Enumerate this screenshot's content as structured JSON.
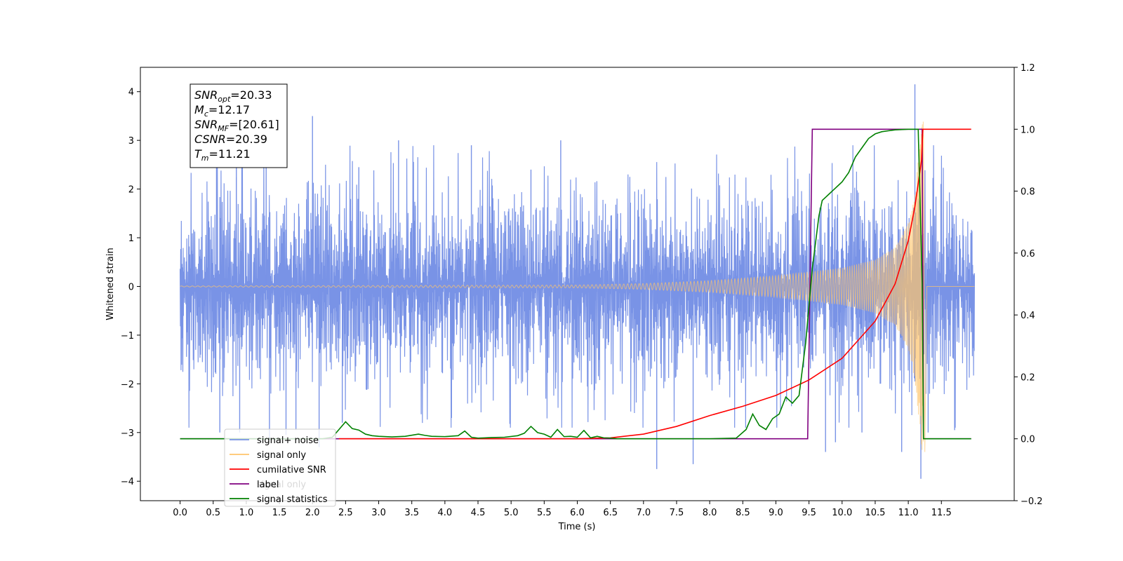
{
  "chart_data": {
    "type": "line",
    "title": "",
    "xlabel": "Time (s)",
    "ylabel_left": "Whitened strain",
    "ylabel_right": "",
    "xlim": [
      -0.6,
      12.6
    ],
    "ylim_left": [
      -4.4,
      4.5
    ],
    "ylim_right": [
      -0.2,
      1.2
    ],
    "x_ticks": [
      "0.0",
      "0.5",
      "1.0",
      "1.5",
      "2.0",
      "2.5",
      "3.0",
      "3.5",
      "4.0",
      "4.5",
      "5.0",
      "5.5",
      "6.0",
      "6.5",
      "7.0",
      "7.5",
      "8.0",
      "8.5",
      "9.0",
      "9.5",
      "10.0",
      "10.5",
      "11.0",
      "11.5"
    ],
    "y_ticks_left": [
      "−4",
      "−3",
      "−2",
      "−1",
      "0",
      "1",
      "2",
      "3",
      "4"
    ],
    "y_ticks_right": [
      "−0.2",
      "0.0",
      "0.2",
      "0.4",
      "0.6",
      "0.8",
      "1.0",
      "1.2"
    ],
    "grid": false,
    "legend_position": "lower-left",
    "legend": [
      {
        "label": "signal+ noise",
        "color": "#7993e6"
      },
      {
        "label": "signal only",
        "color": "#ffc56b"
      },
      {
        "label": "cumilative SNR",
        "color": "#ff0000"
      },
      {
        "label": "label",
        "color": "#800080"
      },
      {
        "label": "signal statistics",
        "color": "#008000"
      }
    ],
    "hidden_legend_label": "signal only",
    "annotation": {
      "lines": [
        {
          "base": "SNR",
          "sub": "opt",
          "value": "=20.33"
        },
        {
          "base": "M",
          "sub": "c",
          "value": "=12.17"
        },
        {
          "base": "SNR",
          "sub": "MF",
          "value": "=[20.61]"
        },
        {
          "base": "CSNR",
          "sub": "",
          "value": "=20.39"
        },
        {
          "base": "T",
          "sub": "m",
          "value": "=11.21"
        }
      ]
    },
    "series": [
      {
        "name": "label",
        "axis": "right",
        "color": "#800080",
        "x": [
          0.0,
          9.48,
          9.55,
          11.21,
          11.23,
          11.95
        ],
        "y": [
          0.0,
          0.0,
          1.0,
          1.0,
          0.0,
          0.0
        ]
      },
      {
        "name": "cumilative SNR",
        "axis": "right",
        "color": "#ff0000",
        "x": [
          2.4,
          6.0,
          6.5,
          7.0,
          7.5,
          8.0,
          8.5,
          9.0,
          9.5,
          10.0,
          10.5,
          10.8,
          11.0,
          11.1,
          11.2,
          11.22,
          11.95
        ],
        "y": [
          0.0,
          0.0,
          0.003,
          0.015,
          0.04,
          0.075,
          0.105,
          0.14,
          0.19,
          0.26,
          0.38,
          0.5,
          0.64,
          0.75,
          0.9,
          1.0,
          1.0
        ]
      },
      {
        "name": "signal statistics",
        "axis": "right",
        "color": "#008000",
        "x": [
          0.0,
          2.15,
          2.3,
          2.4,
          2.5,
          2.6,
          2.7,
          2.8,
          2.9,
          3.0,
          3.2,
          3.4,
          3.6,
          3.7,
          3.8,
          4.0,
          4.2,
          4.3,
          4.4,
          4.5,
          4.6,
          4.7,
          4.9,
          5.1,
          5.2,
          5.3,
          5.4,
          5.5,
          5.6,
          5.7,
          5.8,
          5.9,
          6.0,
          6.1,
          6.2,
          6.3,
          6.4,
          6.5,
          6.6,
          6.8,
          6.9,
          7.0,
          7.2,
          7.5,
          8.0,
          8.4,
          8.55,
          8.65,
          8.75,
          8.85,
          8.95,
          9.05,
          9.15,
          9.25,
          9.35,
          9.45,
          9.55,
          9.65,
          9.7,
          9.75,
          9.8,
          9.85,
          9.9,
          9.95,
          10.0,
          10.1,
          10.2,
          10.3,
          10.4,
          10.5,
          10.6,
          10.7,
          10.8,
          11.0,
          11.15,
          11.21,
          11.23,
          11.95
        ],
        "y": [
          0.0,
          0.0,
          0.005,
          0.03,
          0.055,
          0.033,
          0.028,
          0.015,
          0.01,
          0.008,
          0.006,
          0.008,
          0.015,
          0.011,
          0.008,
          0.007,
          0.01,
          0.025,
          0.005,
          0.002,
          0.003,
          0.004,
          0.005,
          0.01,
          0.018,
          0.04,
          0.02,
          0.015,
          0.005,
          0.03,
          0.007,
          0.008,
          0.005,
          0.027,
          0.003,
          0.008,
          0.003,
          0.002,
          0.0,
          0.0,
          0.0,
          0.0,
          0.0,
          0.0,
          0.0,
          0.002,
          0.03,
          0.08,
          0.043,
          0.03,
          0.065,
          0.08,
          0.135,
          0.115,
          0.14,
          0.31,
          0.55,
          0.72,
          0.77,
          0.78,
          0.79,
          0.8,
          0.81,
          0.82,
          0.83,
          0.86,
          0.91,
          0.94,
          0.97,
          0.985,
          0.992,
          0.995,
          0.998,
          1.0,
          1.0,
          0.5,
          0.0,
          0.0
        ]
      },
      {
        "name": "signal only",
        "axis": "left",
        "color": "#ffc56b",
        "model": "chirp",
        "x_start": 0.0,
        "x_end": 11.23,
        "envelope": [
          {
            "x": 0.0,
            "amp": 0.01
          },
          {
            "x": 6.0,
            "amp": 0.03
          },
          {
            "x": 7.0,
            "amp": 0.06
          },
          {
            "x": 8.0,
            "amp": 0.12
          },
          {
            "x": 9.0,
            "amp": 0.22
          },
          {
            "x": 10.0,
            "amp": 0.38
          },
          {
            "x": 10.5,
            "amp": 0.55
          },
          {
            "x": 10.8,
            "amp": 0.8
          },
          {
            "x": 11.0,
            "amp": 1.3
          },
          {
            "x": 11.1,
            "amp": 1.9
          },
          {
            "x": 11.18,
            "amp": 3.0
          },
          {
            "x": 11.21,
            "amp": 3.4
          }
        ]
      },
      {
        "name": "signal+ noise",
        "axis": "left",
        "color": "#7993e6",
        "model": "noise",
        "x_start": 0.0,
        "x_end": 12.0,
        "std": 0.85,
        "peaks": [
          {
            "x": 0.55,
            "y": 2.45
          },
          {
            "x": 0.6,
            "y": -3.0
          },
          {
            "x": 0.85,
            "y": 2.7
          },
          {
            "x": 0.9,
            "y": -3.0
          },
          {
            "x": 1.3,
            "y": 2.6
          },
          {
            "x": 1.35,
            "y": -3.15
          },
          {
            "x": 1.6,
            "y": -3.05
          },
          {
            "x": 1.75,
            "y": -2.95
          },
          {
            "x": 2.0,
            "y": 3.5
          },
          {
            "x": 2.1,
            "y": -3.3
          },
          {
            "x": 2.45,
            "y": -2.8
          },
          {
            "x": 2.7,
            "y": 2.45
          },
          {
            "x": 3.3,
            "y": 3.0
          },
          {
            "x": 4.1,
            "y": -2.7
          },
          {
            "x": 4.4,
            "y": 2.9
          },
          {
            "x": 5.75,
            "y": 3.0
          },
          {
            "x": 5.3,
            "y": 2.4
          },
          {
            "x": 7.2,
            "y": -3.75
          },
          {
            "x": 7.75,
            "y": -3.65
          },
          {
            "x": 9.75,
            "y": -3.4
          },
          {
            "x": 9.9,
            "y": -3.2
          },
          {
            "x": 10.3,
            "y": -3.0
          },
          {
            "x": 10.9,
            "y": -3.4
          },
          {
            "x": 11.1,
            "y": 4.15
          },
          {
            "x": 11.19,
            "y": -3.95
          },
          {
            "x": 11.3,
            "y": -3.0
          },
          {
            "x": 11.7,
            "y": -2.95
          }
        ]
      }
    ]
  }
}
